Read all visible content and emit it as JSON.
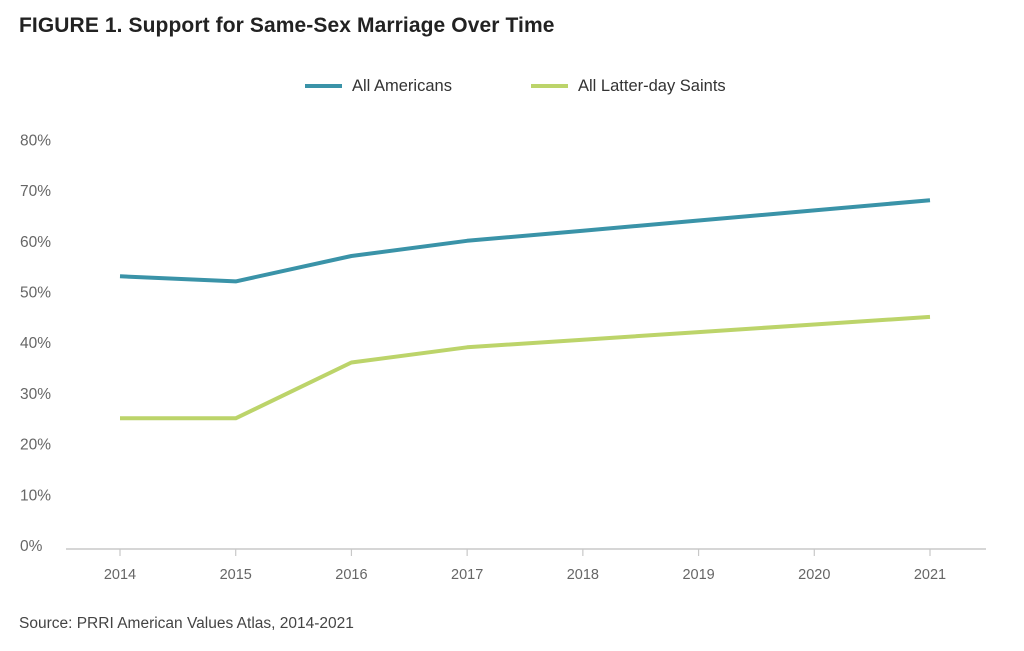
{
  "title": "FIGURE 1.  Support for Same-Sex Marriage Over Time",
  "source": "Source: PRRI American Values Atlas, 2014-2021",
  "colors": {
    "all_americans": "#3a93a8",
    "latter_day_saints": "#bcd46a",
    "axis": "#c8c8c8",
    "tick_text": "#666666"
  },
  "chart_data": {
    "type": "line",
    "title": "FIGURE 1.  Support for Same-Sex Marriage Over Time",
    "x": [
      "2014",
      "2015",
      "2016",
      "2017",
      "2018",
      "2019",
      "2020",
      "2021"
    ],
    "y_ticks": [
      "0%",
      "10%",
      "20%",
      "30%",
      "40%",
      "50%",
      "60%",
      "70%",
      "80%"
    ],
    "ylim": [
      0,
      80
    ],
    "grid": false,
    "legend_position": "top-center",
    "series": [
      {
        "name": "All Americans",
        "values": [
          53,
          52,
          57,
          60,
          62,
          64,
          66,
          68
        ]
      },
      {
        "name": "All Latter-day Saints",
        "values": [
          25,
          25,
          36,
          39,
          40.5,
          42,
          43.5,
          45
        ]
      }
    ]
  }
}
